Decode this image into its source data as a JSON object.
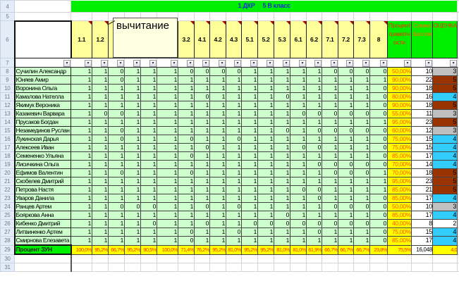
{
  "sheet": {
    "title": "1 ДКР     5 В класс",
    "row_numbers": [
      4,
      5,
      6,
      7,
      8,
      9,
      10,
      11,
      12,
      13,
      14,
      15,
      16,
      17,
      18,
      19,
      20,
      21,
      22,
      23,
      24,
      25,
      26,
      27,
      28,
      29,
      30,
      31
    ],
    "task_headers": [
      "1.1",
      "1.2",
      "",
      "",
      "",
      "",
      "3.2",
      "4.1",
      "4.2",
      "4.3",
      "5.1",
      "5.2",
      "5.3",
      "6.1",
      "6.2",
      "7.1",
      "7.2",
      "7.3",
      "8"
    ],
    "percent_header": "Процент грамотн ости",
    "sum_header": "Сумма баллов",
    "grade_header": "ОЦЕНКА",
    "tooltip": "вычитание",
    "filter_icon": "dropdown-arrow-icon",
    "grade_colors": {
      "5": "#993300",
      "4": "#33ccff",
      "3": "#c0c0c0",
      "2": "#ffffff"
    },
    "students": [
      {
        "name": "Сучилин Александр",
        "scores": [
          1,
          1,
          0,
          1,
          1,
          1,
          0,
          0,
          0,
          0,
          1,
          1,
          1,
          1,
          1,
          0,
          0,
          0,
          0
        ],
        "percent": "50,00%",
        "sum": "10",
        "grade": "3"
      },
      {
        "name": "Юняев Амир",
        "scores": [
          1,
          1,
          0,
          1,
          1,
          1,
          1,
          1,
          1,
          1,
          1,
          1,
          1,
          1,
          1,
          1,
          1,
          1,
          1
        ],
        "percent": "90,00%",
        "sum": "22",
        "grade": "5"
      },
      {
        "name": "Воронина Ольга",
        "scores": [
          1,
          1,
          1,
          1,
          1,
          1,
          1,
          1,
          1,
          1,
          1,
          1,
          1,
          1,
          1,
          1,
          1,
          1,
          0
        ],
        "percent": "90,00%",
        "sum": "18",
        "grade": "5"
      },
      {
        "name": "Камалова Нателла",
        "scores": [
          1,
          1,
          1,
          1,
          1,
          1,
          1,
          0,
          1,
          1,
          1,
          1,
          0,
          1,
          1,
          1,
          1,
          1,
          0
        ],
        "percent": "80,00%",
        "sum": "16",
        "grade": "4"
      },
      {
        "name": "Якимук Вероника",
        "scores": [
          1,
          1,
          1,
          1,
          1,
          1,
          1,
          1,
          1,
          1,
          1,
          1,
          1,
          1,
          1,
          1,
          1,
          1,
          0
        ],
        "percent": "90,00%",
        "sum": "18",
        "grade": "5"
      },
      {
        "name": "Казакевич Варвара",
        "scores": [
          1,
          0,
          0,
          1,
          1,
          1,
          1,
          1,
          1,
          1,
          1,
          1,
          1,
          0,
          0,
          0,
          0,
          0,
          0
        ],
        "percent": "55,00%",
        "sum": "11",
        "grade": "3"
      },
      {
        "name": "Прусаков Богдан",
        "scores": [
          1,
          1,
          1,
          1,
          1,
          1,
          1,
          1,
          1,
          1,
          1,
          1,
          1,
          1,
          1,
          1,
          1,
          1,
          1
        ],
        "percent": "95,00%",
        "sum": "23",
        "grade": "5"
      },
      {
        "name": "Незамединов Руслан",
        "scores": [
          1,
          1,
          0,
          1,
          1,
          1,
          1,
          1,
          1,
          1,
          1,
          1,
          0,
          1,
          0,
          0,
          0,
          0,
          0
        ],
        "percent": "60,00%",
        "sum": "12",
        "grade": "3"
      },
      {
        "name": "Лукинская Дарья",
        "scores": [
          1,
          1,
          0,
          1,
          1,
          1,
          0,
          1,
          1,
          0,
          1,
          1,
          1,
          1,
          1,
          1,
          1,
          1,
          0
        ],
        "percent": "75,00%",
        "sum": "15",
        "grade": "4"
      },
      {
        "name": "Алексеев Иван",
        "scores": [
          1,
          1,
          1,
          1,
          1,
          1,
          1,
          0,
          1,
          1,
          1,
          1,
          1,
          0,
          0,
          1,
          1,
          1,
          0
        ],
        "percent": "75,00%",
        "sum": "15",
        "grade": "4"
      },
      {
        "name": "Семененко Ульяна",
        "scores": [
          1,
          1,
          1,
          1,
          1,
          1,
          0,
          1,
          1,
          1,
          1,
          1,
          1,
          1,
          1,
          1,
          1,
          1,
          0
        ],
        "percent": "85,00%",
        "sum": "17",
        "grade": "4"
      },
      {
        "name": "Лисичкина Ольга",
        "scores": [
          1,
          1,
          1,
          1,
          1,
          1,
          1,
          1,
          1,
          1,
          1,
          1,
          1,
          1,
          0,
          0,
          0,
          0,
          0
        ],
        "percent": "70,00%",
        "sum": "14",
        "grade": "4"
      },
      {
        "name": "Ефимов Валентин",
        "scores": [
          1,
          1,
          0,
          1,
          1,
          1,
          0,
          1,
          1,
          1,
          1,
          1,
          1,
          1,
          1,
          0,
          0,
          0,
          1
        ],
        "percent": "70,00%",
        "sum": "18",
        "grade": "5"
      },
      {
        "name": "Скобелев Дмитрий",
        "scores": [
          1,
          1,
          1,
          1,
          1,
          1,
          1,
          1,
          1,
          1,
          1,
          1,
          1,
          1,
          1,
          1,
          1,
          1,
          1
        ],
        "percent": "95,00%",
        "sum": "23",
        "grade": "5"
      },
      {
        "name": "Петрова Настя",
        "scores": [
          1,
          1,
          1,
          1,
          1,
          1,
          1,
          1,
          1,
          1,
          1,
          1,
          1,
          0,
          0,
          1,
          1,
          1,
          1
        ],
        "percent": "85,00%",
        "sum": "21",
        "grade": "5"
      },
      {
        "name": "Уваров Данила",
        "scores": [
          1,
          1,
          1,
          1,
          1,
          1,
          1,
          1,
          1,
          1,
          1,
          1,
          1,
          1,
          0,
          1,
          1,
          1,
          0
        ],
        "percent": "85,00%",
        "sum": "17",
        "grade": "4"
      },
      {
        "name": "Ранцев Артем",
        "scores": [
          1,
          1,
          0,
          0,
          0,
          1,
          1,
          0,
          1,
          0,
          1,
          1,
          1,
          1,
          1,
          0,
          0,
          0,
          0
        ],
        "percent": "50,00%",
        "sum": "10",
        "grade": "3"
      },
      {
        "name": "Бояркова Анна",
        "scores": [
          1,
          1,
          1,
          1,
          1,
          1,
          1,
          1,
          1,
          1,
          1,
          1,
          0,
          1,
          1,
          1,
          1,
          1,
          0
        ],
        "percent": "85,00%",
        "sum": "17",
        "grade": "4"
      },
      {
        "name": "Кибенко Дмитрий",
        "scores": [
          1,
          1,
          1,
          1,
          0,
          1,
          1,
          0,
          1,
          1,
          0,
          0,
          0,
          0,
          0,
          0,
          0,
          0,
          0
        ],
        "percent": "40,00%",
        "sum": "8",
        "grade": "2"
      },
      {
        "name": "Литвиненко Артем",
        "scores": [
          1,
          1,
          1,
          1,
          1,
          1,
          0,
          1,
          1,
          0,
          1,
          1,
          1,
          1,
          0,
          1,
          1,
          1,
          0
        ],
        "percent": "75,00%",
        "sum": "15",
        "grade": "4"
      },
      {
        "name": "Смирнова Елезавета",
        "scores": [
          1,
          1,
          1,
          1,
          1,
          1,
          0,
          1,
          1,
          1,
          1,
          1,
          1,
          1,
          1,
          1,
          1,
          1,
          0
        ],
        "percent": "85,00%",
        "sum": "17",
        "grade": "4"
      }
    ],
    "totals": {
      "label": "Процент ЗУН",
      "task_percents": [
        "100,0%",
        "95,2%",
        "66,7%",
        "95,2%",
        "90,5%",
        "100,0%",
        "71,4%",
        "76,2%",
        "95,2%",
        "81,0%",
        "95,2%",
        "95,2%",
        "81,0%",
        "81,0%",
        "61,9%",
        "66,7%",
        "66,7%",
        "66,7%",
        "23,8%"
      ],
      "percent": "75,5%",
      "sum": "16,048",
      "grade": "4,0"
    }
  }
}
